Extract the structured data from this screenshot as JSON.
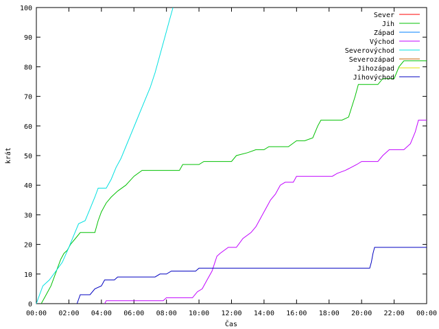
{
  "chart_data": {
    "type": "line",
    "xlabel": "Čas",
    "ylabel": "krát",
    "xlim": [
      0,
      24
    ],
    "ylim": [
      0,
      100
    ],
    "xticks": [
      {
        "v": 0,
        "label": "00:00"
      },
      {
        "v": 2,
        "label": "02:00"
      },
      {
        "v": 4,
        "label": "04:00"
      },
      {
        "v": 6,
        "label": "06:00"
      },
      {
        "v": 8,
        "label": "08:00"
      },
      {
        "v": 10,
        "label": "10:00"
      },
      {
        "v": 12,
        "label": "12:00"
      },
      {
        "v": 14,
        "label": "14:00"
      },
      {
        "v": 16,
        "label": "16:00"
      },
      {
        "v": 18,
        "label": "18:00"
      },
      {
        "v": 20,
        "label": "20:00"
      },
      {
        "v": 22,
        "label": "22:00"
      },
      {
        "v": 24,
        "label": "00:00"
      }
    ],
    "yticks": [
      0,
      10,
      20,
      30,
      40,
      50,
      60,
      70,
      80,
      90,
      100
    ],
    "grid": false,
    "legend": "top-right",
    "series": [
      {
        "name": "Sever",
        "color": "#ff0000",
        "points": []
      },
      {
        "name": "Jih",
        "color": "#00c000",
        "points": [
          [
            0.3,
            0
          ],
          [
            0.5,
            2
          ],
          [
            0.7,
            4
          ],
          [
            0.9,
            6
          ],
          [
            1.1,
            9
          ],
          [
            1.3,
            12
          ],
          [
            1.5,
            15
          ],
          [
            1.7,
            17
          ],
          [
            1.9,
            18
          ],
          [
            2.1,
            20
          ],
          [
            2.4,
            22
          ],
          [
            2.7,
            24
          ],
          [
            3.6,
            24
          ],
          [
            3.8,
            28
          ],
          [
            4.0,
            31
          ],
          [
            4.3,
            34
          ],
          [
            4.6,
            36
          ],
          [
            5.0,
            38
          ],
          [
            5.5,
            40
          ],
          [
            6.0,
            43
          ],
          [
            6.5,
            45
          ],
          [
            8.8,
            45
          ],
          [
            9.0,
            47
          ],
          [
            10.0,
            47
          ],
          [
            10.3,
            48
          ],
          [
            12.0,
            48
          ],
          [
            12.3,
            50
          ],
          [
            13.0,
            51
          ],
          [
            13.5,
            52
          ],
          [
            14.0,
            52
          ],
          [
            14.3,
            53
          ],
          [
            15.5,
            53
          ],
          [
            16.0,
            55
          ],
          [
            16.5,
            55
          ],
          [
            17.0,
            56
          ],
          [
            17.3,
            60
          ],
          [
            17.5,
            62
          ],
          [
            18.8,
            62
          ],
          [
            19.2,
            63
          ],
          [
            19.6,
            70
          ],
          [
            19.8,
            74
          ],
          [
            21.0,
            74
          ],
          [
            21.3,
            76
          ],
          [
            22.0,
            76
          ],
          [
            22.3,
            80
          ],
          [
            22.6,
            82
          ],
          [
            24.0,
            82
          ]
        ]
      },
      {
        "name": "Západ",
        "color": "#0080ff",
        "points": []
      },
      {
        "name": "Východ",
        "color": "#c000ff",
        "points": [
          [
            4.2,
            0
          ],
          [
            4.3,
            1
          ],
          [
            7.8,
            1
          ],
          [
            8.0,
            2
          ],
          [
            9.6,
            2
          ],
          [
            9.9,
            4
          ],
          [
            10.2,
            5
          ],
          [
            10.5,
            8
          ],
          [
            10.8,
            11
          ],
          [
            11.1,
            16
          ],
          [
            11.3,
            17
          ],
          [
            11.8,
            19
          ],
          [
            12.3,
            19
          ],
          [
            12.7,
            22
          ],
          [
            13.2,
            24
          ],
          [
            13.5,
            26
          ],
          [
            13.8,
            29
          ],
          [
            14.0,
            31
          ],
          [
            14.2,
            33
          ],
          [
            14.4,
            35
          ],
          [
            14.7,
            37
          ],
          [
            15.0,
            40
          ],
          [
            15.3,
            41
          ],
          [
            15.8,
            41
          ],
          [
            16.0,
            43
          ],
          [
            18.2,
            43
          ],
          [
            18.5,
            44
          ],
          [
            19.0,
            45
          ],
          [
            19.7,
            47
          ],
          [
            20.0,
            48
          ],
          [
            21.0,
            48
          ],
          [
            21.3,
            50
          ],
          [
            21.7,
            52
          ],
          [
            22.6,
            52
          ],
          [
            23.0,
            54
          ],
          [
            23.3,
            58
          ],
          [
            23.5,
            62
          ],
          [
            24.0,
            62
          ]
        ]
      },
      {
        "name": "Severovýchod",
        "color": "#00e0e0",
        "points": [
          [
            0,
            0
          ],
          [
            0.2,
            3
          ],
          [
            0.4,
            6
          ],
          [
            0.8,
            8
          ],
          [
            1.2,
            11
          ],
          [
            1.6,
            14
          ],
          [
            2.0,
            19
          ],
          [
            2.3,
            23
          ],
          [
            2.6,
            27
          ],
          [
            3.0,
            28
          ],
          [
            3.3,
            32
          ],
          [
            3.6,
            36
          ],
          [
            3.8,
            39
          ],
          [
            4.3,
            39
          ],
          [
            4.6,
            42
          ],
          [
            4.9,
            46
          ],
          [
            5.2,
            49
          ],
          [
            5.5,
            53
          ],
          [
            5.8,
            57
          ],
          [
            6.1,
            61
          ],
          [
            6.4,
            65
          ],
          [
            6.7,
            69
          ],
          [
            7.0,
            73
          ],
          [
            7.3,
            78
          ],
          [
            7.6,
            84
          ],
          [
            7.9,
            90
          ],
          [
            8.2,
            96
          ],
          [
            8.4,
            100
          ]
        ]
      },
      {
        "name": "Severozápad",
        "color": "#c06000",
        "points": []
      },
      {
        "name": "Jihozápad",
        "color": "#e0e000",
        "points": []
      },
      {
        "name": "Jihovýchod",
        "color": "#0000c0",
        "points": [
          [
            2.5,
            0
          ],
          [
            2.7,
            3
          ],
          [
            3.3,
            3
          ],
          [
            3.6,
            5
          ],
          [
            4.0,
            6
          ],
          [
            4.2,
            8
          ],
          [
            4.8,
            8
          ],
          [
            5.0,
            9
          ],
          [
            7.3,
            9
          ],
          [
            7.6,
            10
          ],
          [
            8.0,
            10
          ],
          [
            8.3,
            11
          ],
          [
            9.8,
            11
          ],
          [
            10.0,
            12
          ],
          [
            20.5,
            12
          ],
          [
            20.6,
            14
          ],
          [
            20.7,
            17
          ],
          [
            20.8,
            19
          ],
          [
            24.0,
            19
          ]
        ]
      }
    ]
  }
}
